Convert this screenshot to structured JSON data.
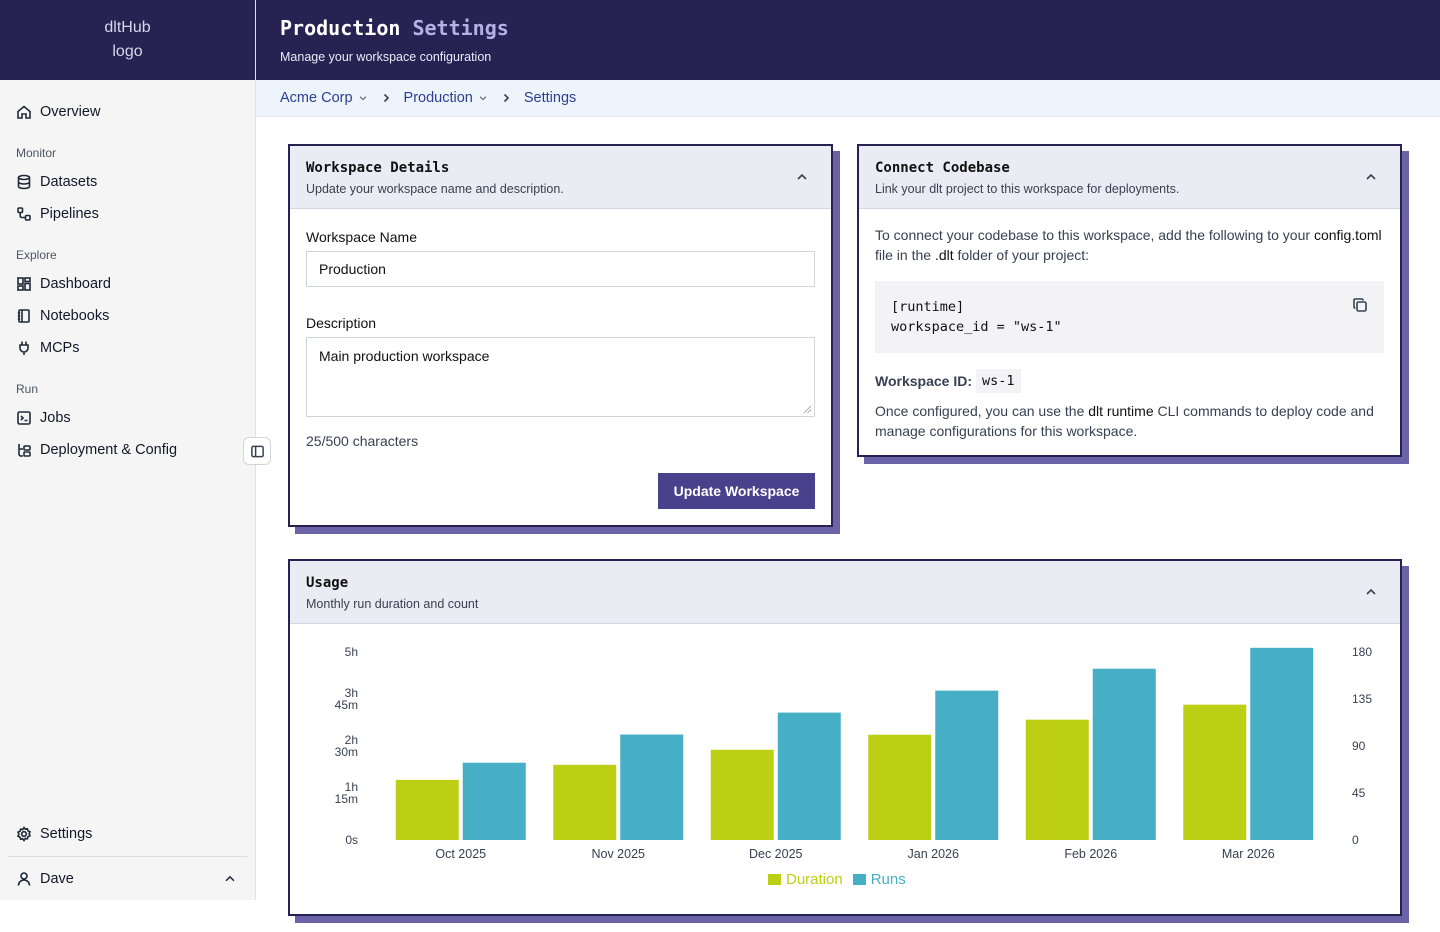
{
  "logo_alt": "dltHub logo",
  "sidebar": {
    "top": [
      {
        "label": "Overview",
        "icon": "home-icon"
      }
    ],
    "sections": [
      {
        "title": "Monitor",
        "items": [
          {
            "label": "Datasets",
            "icon": "database-icon"
          },
          {
            "label": "Pipelines",
            "icon": "pipeline-icon"
          }
        ]
      },
      {
        "title": "Explore",
        "items": [
          {
            "label": "Dashboard",
            "icon": "dashboard-icon"
          },
          {
            "label": "Notebooks",
            "icon": "notebook-icon"
          },
          {
            "label": "MCPs",
            "icon": "plug-icon"
          }
        ]
      },
      {
        "title": "Run",
        "items": [
          {
            "label": "Jobs",
            "icon": "terminal-icon"
          },
          {
            "label": "Deployment & Config",
            "icon": "deploy-icon"
          }
        ]
      }
    ],
    "settings_label": "Settings",
    "user_name": "Dave"
  },
  "header": {
    "title_main": "Production",
    "title_accent": "Settings",
    "subtitle": "Manage your workspace configuration"
  },
  "breadcrumb": [
    "Acme Corp",
    "Production",
    "Settings"
  ],
  "workspace_details": {
    "title": "Workspace Details",
    "description": "Update your workspace name and description.",
    "name_label": "Workspace Name",
    "name_value": "Production",
    "desc_label": "Description",
    "desc_value": "Main production workspace",
    "char_count": "25/500 characters",
    "button": "Update Workspace"
  },
  "connect_codebase": {
    "title": "Connect Codebase",
    "description": "Link your dlt project to this workspace for deployments.",
    "intro_1": "To connect your codebase to this workspace, add the following to your",
    "intro_file": "config.toml",
    "intro_2": "file in the",
    "intro_folder": ".dlt",
    "intro_3": "folder of your project:",
    "code_line1": "[runtime]",
    "code_line2": "workspace_id = \"ws-1\"",
    "ws_id_label": "Workspace ID:",
    "ws_id_value": "ws-1",
    "outro_1": "Once configured, you can use the",
    "outro_cmd": "dlt runtime",
    "outro_2": "CLI commands to deploy code and manage configurations for this workspace."
  },
  "usage": {
    "title": "Usage",
    "description": "Monthly run duration and count"
  },
  "chart_data": {
    "type": "bar",
    "categories": [
      "Oct 2025",
      "Nov 2025",
      "Dec 2025",
      "Jan 2026",
      "Feb 2026",
      "Mar 2026"
    ],
    "series": [
      {
        "name": "Duration",
        "axis": "left",
        "color": "#bccf15",
        "values_hours": [
          1.6,
          2.0,
          2.4,
          2.8,
          3.2,
          3.6
        ]
      },
      {
        "name": "Runs",
        "axis": "right",
        "color": "#46afc6",
        "values": [
          74,
          101,
          122,
          143,
          164,
          184
        ]
      }
    ],
    "y_left_ticks": [
      "0s",
      "1h 15m",
      "2h 30m",
      "3h 45m",
      "5h"
    ],
    "y_left_range_hours": [
      0,
      5
    ],
    "y_right_ticks": [
      "0",
      "45",
      "90",
      "135",
      "180"
    ],
    "y_right_range": [
      0,
      180
    ],
    "legend": "bottom-center",
    "grid": false
  }
}
